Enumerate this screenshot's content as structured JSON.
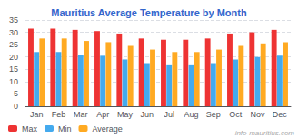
{
  "chart_data": {
    "type": "bar",
    "title": "Mauritius Average Temperature by Month",
    "categories": [
      "Jan",
      "Feb",
      "Mar",
      "Apr",
      "May",
      "Jun",
      "Jul",
      "Aug",
      "Sep",
      "Oct",
      "Nov",
      "Dec"
    ],
    "series": [
      {
        "name": "Max",
        "color": "#ee3333",
        "values": [
          31.5,
          31.5,
          31.0,
          30.5,
          29.5,
          27.5,
          27.0,
          27.0,
          27.5,
          29.5,
          30.0,
          31.0
        ]
      },
      {
        "name": "Min",
        "color": "#44aaee",
        "values": [
          22.0,
          22.0,
          21.0,
          20.5,
          19.0,
          17.5,
          17.0,
          17.0,
          17.5,
          19.0,
          20.0,
          20.5
        ]
      },
      {
        "name": "Average",
        "color": "#ffaa22",
        "values": [
          27.5,
          27.5,
          26.5,
          26.0,
          24.5,
          23.0,
          22.0,
          22.0,
          23.0,
          24.5,
          25.5,
          26.0
        ]
      }
    ],
    "ylim": [
      0,
      35
    ],
    "yticks": [
      0,
      5,
      10,
      15,
      20,
      25,
      30,
      35
    ],
    "grid": true,
    "legend": "lower left",
    "annotations": [
      "info-mauritius.com"
    ]
  }
}
